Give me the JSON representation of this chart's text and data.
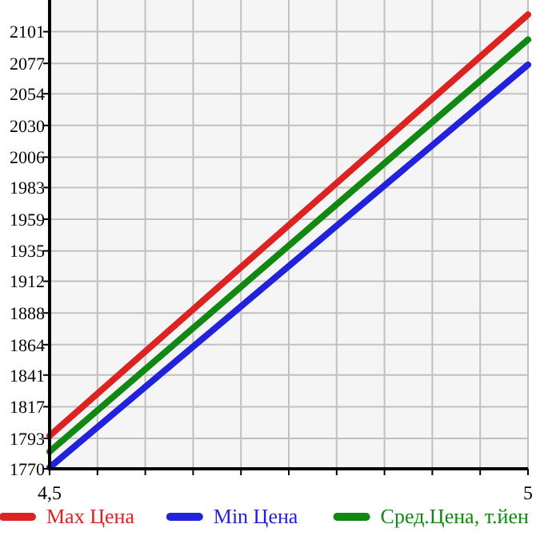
{
  "chart_data": {
    "type": "line",
    "x": [
      4.5,
      5
    ],
    "series": [
      {
        "name": "Max Цена",
        "color": "#dd2222",
        "values": [
          1795,
          2114
        ]
      },
      {
        "name": "Min Цена",
        "color": "#2222dd",
        "values": [
          1771,
          2076
        ]
      },
      {
        "name": "Сред.Цена, т.йен",
        "color": "#118811",
        "values": [
          1783,
          2095
        ]
      }
    ],
    "xlim": [
      4.5,
      5
    ],
    "xticks": [
      {
        "value": 4.5,
        "label": "4,5"
      },
      {
        "value": 4.55,
        "label": null
      },
      {
        "value": 4.6,
        "label": null
      },
      {
        "value": 4.65,
        "label": null
      },
      {
        "value": 4.7,
        "label": null
      },
      {
        "value": 4.75,
        "label": null
      },
      {
        "value": 4.8,
        "label": null
      },
      {
        "value": 4.85,
        "label": null
      },
      {
        "value": 4.9,
        "label": null
      },
      {
        "value": 4.95,
        "label": null
      },
      {
        "value": 5,
        "label": "5"
      }
    ],
    "ylim": [
      1770,
      2125
    ],
    "yticks": [
      1770,
      1793,
      1817,
      1841,
      1864,
      1888,
      1912,
      1935,
      1959,
      1983,
      2006,
      2030,
      2054,
      2077,
      2101
    ],
    "grid": true,
    "legend": "bottom",
    "marker": "none",
    "line_style": "solid"
  }
}
